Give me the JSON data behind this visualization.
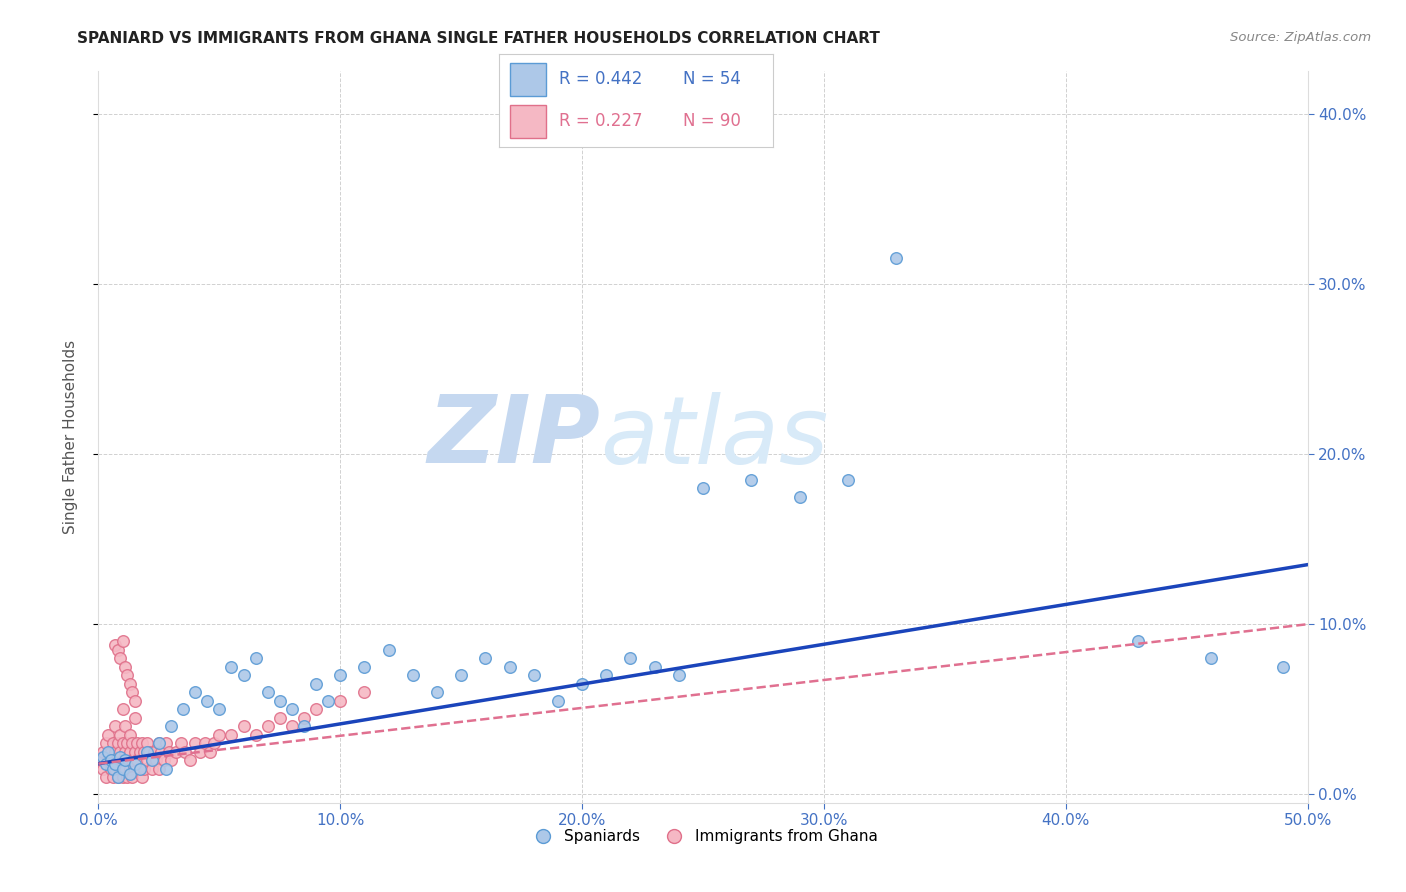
{
  "title": "SPANIARD VS IMMIGRANTS FROM GHANA SINGLE FATHER HOUSEHOLDS CORRELATION CHART",
  "source": "Source: ZipAtlas.com",
  "ylabel": "Single Father Households",
  "xlim": [
    0.0,
    0.5
  ],
  "ylim": [
    -0.005,
    0.425
  ],
  "xticks": [
    0.0,
    0.1,
    0.2,
    0.3,
    0.4,
    0.5
  ],
  "yticks": [
    0.0,
    0.1,
    0.2,
    0.3,
    0.4
  ],
  "ytick_labels_right": [
    "0.0%",
    "10.0%",
    "20.0%",
    "30.0%",
    "40.0%"
  ],
  "xtick_labels": [
    "0.0%",
    "10.0%",
    "20.0%",
    "30.0%",
    "40.0%",
    "50.0%"
  ],
  "grid_color": "#cccccc",
  "background_color": "#ffffff",
  "spaniards_color": "#adc8e8",
  "spaniards_edge_color": "#5b9bd5",
  "ghana_color": "#f5b8c4",
  "ghana_edge_color": "#e0708a",
  "regression_spaniards_color": "#1a44bb",
  "regression_ghana_color": "#e07090",
  "watermark_zip_color": "#c8d8f0",
  "watermark_atlas_color": "#d8e8f8",
  "legend_R_spaniards": "R = 0.442",
  "legend_N_spaniards": "N = 54",
  "legend_R_ghana": "R = 0.227",
  "legend_N_ghana": "N = 90",
  "legend_color_blue": "#4472c4",
  "legend_color_pink": "#e07090",
  "spaniards_x": [
    0.002,
    0.003,
    0.004,
    0.005,
    0.006,
    0.007,
    0.008,
    0.009,
    0.01,
    0.011,
    0.013,
    0.015,
    0.017,
    0.02,
    0.022,
    0.025,
    0.028,
    0.03,
    0.035,
    0.04,
    0.045,
    0.05,
    0.055,
    0.06,
    0.065,
    0.07,
    0.075,
    0.08,
    0.085,
    0.09,
    0.095,
    0.1,
    0.11,
    0.12,
    0.13,
    0.14,
    0.15,
    0.16,
    0.17,
    0.18,
    0.19,
    0.2,
    0.21,
    0.22,
    0.23,
    0.24,
    0.25,
    0.27,
    0.29,
    0.31,
    0.33,
    0.43,
    0.46,
    0.49
  ],
  "spaniards_y": [
    0.022,
    0.018,
    0.025,
    0.02,
    0.015,
    0.018,
    0.01,
    0.022,
    0.015,
    0.02,
    0.012,
    0.018,
    0.015,
    0.025,
    0.02,
    0.03,
    0.015,
    0.04,
    0.05,
    0.06,
    0.055,
    0.05,
    0.075,
    0.07,
    0.08,
    0.06,
    0.055,
    0.05,
    0.04,
    0.065,
    0.055,
    0.07,
    0.075,
    0.085,
    0.07,
    0.06,
    0.07,
    0.08,
    0.075,
    0.07,
    0.055,
    0.065,
    0.07,
    0.08,
    0.075,
    0.07,
    0.18,
    0.185,
    0.175,
    0.185,
    0.315,
    0.09,
    0.08,
    0.075
  ],
  "ghana_x": [
    0.001,
    0.002,
    0.002,
    0.003,
    0.003,
    0.004,
    0.004,
    0.005,
    0.005,
    0.006,
    0.006,
    0.006,
    0.007,
    0.007,
    0.007,
    0.008,
    0.008,
    0.008,
    0.009,
    0.009,
    0.009,
    0.01,
    0.01,
    0.01,
    0.011,
    0.011,
    0.011,
    0.012,
    0.012,
    0.012,
    0.013,
    0.013,
    0.013,
    0.014,
    0.014,
    0.014,
    0.015,
    0.015,
    0.016,
    0.016,
    0.017,
    0.017,
    0.018,
    0.018,
    0.019,
    0.019,
    0.02,
    0.02,
    0.021,
    0.022,
    0.022,
    0.023,
    0.024,
    0.025,
    0.025,
    0.026,
    0.027,
    0.028,
    0.029,
    0.03,
    0.032,
    0.034,
    0.036,
    0.038,
    0.04,
    0.042,
    0.044,
    0.046,
    0.048,
    0.05,
    0.055,
    0.06,
    0.065,
    0.07,
    0.075,
    0.08,
    0.085,
    0.09,
    0.1,
    0.11,
    0.007,
    0.008,
    0.009,
    0.01,
    0.011,
    0.012,
    0.013,
    0.014,
    0.015,
    0.01
  ],
  "ghana_y": [
    0.02,
    0.025,
    0.015,
    0.03,
    0.01,
    0.02,
    0.035,
    0.025,
    0.015,
    0.02,
    0.03,
    0.01,
    0.025,
    0.015,
    0.04,
    0.02,
    0.03,
    0.01,
    0.025,
    0.015,
    0.035,
    0.02,
    0.03,
    0.01,
    0.025,
    0.015,
    0.04,
    0.02,
    0.03,
    0.01,
    0.025,
    0.015,
    0.035,
    0.02,
    0.03,
    0.01,
    0.025,
    0.045,
    0.02,
    0.03,
    0.025,
    0.015,
    0.03,
    0.01,
    0.025,
    0.015,
    0.02,
    0.03,
    0.025,
    0.02,
    0.015,
    0.025,
    0.02,
    0.03,
    0.015,
    0.025,
    0.02,
    0.03,
    0.025,
    0.02,
    0.025,
    0.03,
    0.025,
    0.02,
    0.03,
    0.025,
    0.03,
    0.025,
    0.03,
    0.035,
    0.035,
    0.04,
    0.035,
    0.04,
    0.045,
    0.04,
    0.045,
    0.05,
    0.055,
    0.06,
    0.088,
    0.085,
    0.08,
    0.09,
    0.075,
    0.07,
    0.065,
    0.06,
    0.055,
    0.05
  ]
}
